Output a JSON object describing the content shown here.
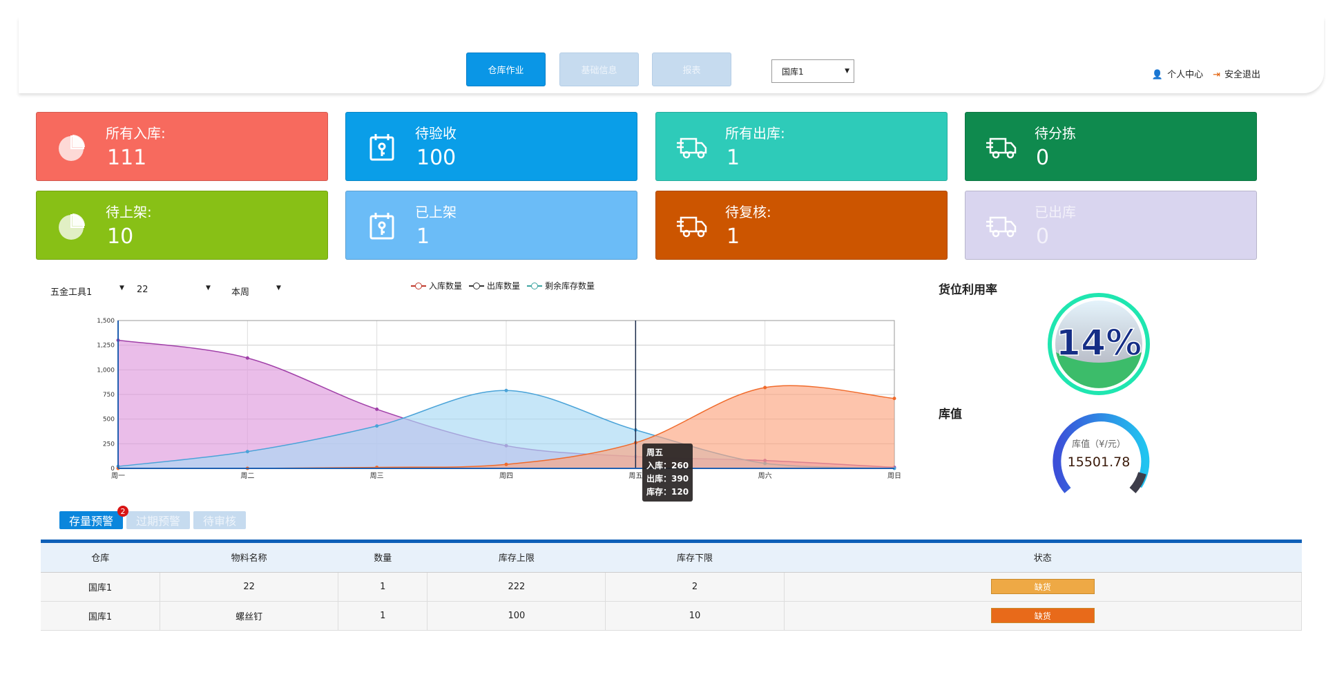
{
  "header": {
    "nav": [
      {
        "label": "仓库作业",
        "active": true
      },
      {
        "label": "基础信息",
        "active": false
      },
      {
        "label": "报表",
        "active": false
      }
    ],
    "warehouse_select": "国库1",
    "user_center": "个人中心",
    "logout": "安全退出"
  },
  "cards": [
    {
      "title": "所有入库:",
      "value": "111",
      "color": "#f76a5e",
      "icon": "pie-chart-icon"
    },
    {
      "title": "待验收",
      "value": "100",
      "color": "#0a9ee8",
      "icon": "calendar-key-icon"
    },
    {
      "title": "所有出库:",
      "value": "1",
      "color": "#2ecbb9",
      "icon": "truck-icon"
    },
    {
      "title": "待分拣",
      "value": "0",
      "color": "#0f8a4e",
      "icon": "truck-icon"
    },
    {
      "title": "待上架:",
      "value": "10",
      "color": "#88c016",
      "icon": "pie-chart-icon"
    },
    {
      "title": "已上架",
      "value": "1",
      "color": "#6bbcf7",
      "icon": "calendar-key-icon"
    },
    {
      "title": "待复核:",
      "value": "1",
      "color": "#cc5500",
      "icon": "truck-icon"
    },
    {
      "title": "已出库",
      "value": "0",
      "color": "#d9d5ef",
      "icon": "truck-icon"
    }
  ],
  "filters": [
    "五金工具1",
    "22",
    "本周"
  ],
  "chart_data": {
    "type": "area",
    "categories": [
      "周一",
      "周二",
      "周三",
      "周四",
      "周五",
      "周六",
      "周日"
    ],
    "yticks": [
      "0",
      "250",
      "500",
      "750",
      "1,000",
      "1,250",
      "1,500"
    ],
    "ylim": [
      0,
      1500
    ],
    "grid": true,
    "legend_position": "top",
    "series": [
      {
        "name": "入库数量",
        "color": "#f06a2a",
        "fill": "#fca47f",
        "values": [
          0,
          0,
          10,
          40,
          260,
          820,
          710
        ]
      },
      {
        "name": "出库数量",
        "color": "#4aa3d8",
        "fill": "#a8d8f5",
        "values": [
          20,
          170,
          430,
          790,
          390,
          50,
          0
        ]
      },
      {
        "name": "剩余库存数量",
        "color": "#a040a8",
        "fill": "#de99dd",
        "values": [
          1300,
          1120,
          600,
          230,
          120,
          80,
          10
        ]
      }
    ],
    "tooltip": {
      "title": "周五",
      "lines": [
        "入库：260",
        "出库：390",
        "库存：120"
      ]
    }
  },
  "utilization": {
    "label": "货位利用率",
    "value": "14%",
    "percent": 14
  },
  "stock_value": {
    "label": "库值",
    "gauge_label": "库值（¥/元）",
    "value": "15501.78"
  },
  "tabs": [
    {
      "label": "存量预警",
      "badge": "2"
    },
    {
      "label": "过期预警"
    },
    {
      "label": "待审核"
    }
  ],
  "table": {
    "headers": [
      "仓库",
      "物料名称",
      "数量",
      "库存上限",
      "库存下限",
      "状态"
    ],
    "rows": [
      [
        "国库1",
        "22",
        "1",
        "222",
        "2",
        "缺货"
      ],
      [
        "国库1",
        "螺丝钉",
        "1",
        "100",
        "10",
        "缺货"
      ]
    ]
  }
}
